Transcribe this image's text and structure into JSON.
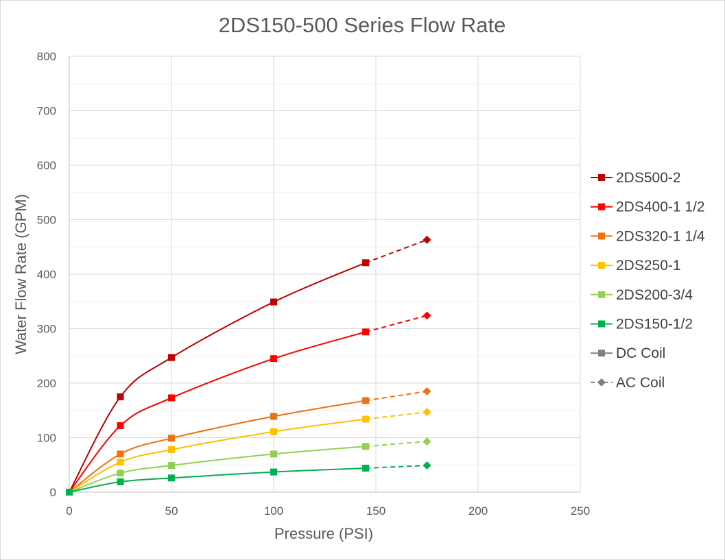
{
  "chart_data": {
    "type": "line",
    "title": "2DS150-500 Series Flow Rate",
    "xlabel": "Pressure (PSI)",
    "ylabel": "Water Flow Rate (GPM)",
    "xlim": [
      0,
      250
    ],
    "ylim": [
      0,
      800
    ],
    "xticks": [
      "0",
      "50",
      "100",
      "150",
      "200",
      "250"
    ],
    "yticks": [
      "0",
      "100",
      "200",
      "300",
      "400",
      "500",
      "600",
      "700",
      "800"
    ],
    "grid": true,
    "legend_position": "right",
    "series": [
      {
        "name": "2DS500-2",
        "color": "#c00000",
        "dc": [
          [
            0,
            0
          ],
          [
            25,
            175
          ],
          [
            50,
            247
          ],
          [
            100,
            349
          ],
          [
            145,
            421
          ]
        ],
        "ac": [
          [
            145,
            421
          ],
          [
            175,
            463
          ]
        ]
      },
      {
        "name": "2DS400-1 1/2",
        "color": "#ff0000",
        "dc": [
          [
            0,
            0
          ],
          [
            25,
            122
          ],
          [
            50,
            173
          ],
          [
            100,
            245
          ],
          [
            145,
            294
          ]
        ],
        "ac": [
          [
            145,
            294
          ],
          [
            175,
            324
          ]
        ]
      },
      {
        "name": "2DS320-1 1/4",
        "color": "#f07010",
        "dc": [
          [
            0,
            0
          ],
          [
            25,
            70
          ],
          [
            50,
            99
          ],
          [
            100,
            139
          ],
          [
            145,
            168
          ]
        ],
        "ac": [
          [
            145,
            168
          ],
          [
            175,
            185
          ]
        ]
      },
      {
        "name": "2DS250-1",
        "color": "#ffc000",
        "dc": [
          [
            0,
            0
          ],
          [
            25,
            55
          ],
          [
            50,
            78
          ],
          [
            100,
            111
          ],
          [
            145,
            134
          ]
        ],
        "ac": [
          [
            145,
            134
          ],
          [
            175,
            147
          ]
        ]
      },
      {
        "name": "2DS200-3/4",
        "color": "#92d050",
        "dc": [
          [
            0,
            0
          ],
          [
            25,
            35
          ],
          [
            50,
            49
          ],
          [
            100,
            70
          ],
          [
            145,
            84
          ]
        ],
        "ac": [
          [
            145,
            84
          ],
          [
            175,
            93
          ]
        ]
      },
      {
        "name": "2DS150-1/2",
        "color": "#00b050",
        "dc": [
          [
            0,
            0
          ],
          [
            25,
            19
          ],
          [
            50,
            26
          ],
          [
            100,
            37
          ],
          [
            145,
            44
          ]
        ],
        "ac": [
          [
            145,
            44
          ],
          [
            175,
            49
          ]
        ]
      }
    ],
    "marker_legend": [
      {
        "name": "DC Coil",
        "color": "#7f7f7f",
        "marker": "square",
        "dash": false
      },
      {
        "name": "AC Coil",
        "color": "#7f7f7f",
        "marker": "diamond",
        "dash": true
      }
    ]
  }
}
